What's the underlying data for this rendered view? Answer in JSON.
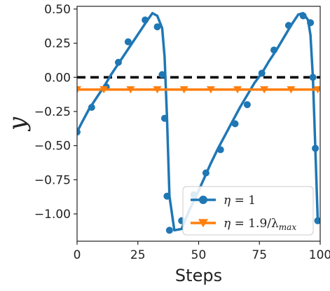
{
  "chart_data": {
    "type": "line",
    "xlabel": "Steps",
    "ylabel": "y",
    "xlim": [
      0,
      100
    ],
    "ylim": [
      -1.2,
      0.52
    ],
    "xticks": [
      0,
      25,
      50,
      75,
      100
    ],
    "xtick_labels": [
      "0",
      "25",
      "50",
      "75",
      "100"
    ],
    "yticks": [
      0.5,
      0.25,
      0.0,
      -0.25,
      -0.5,
      -0.75,
      -1.0
    ],
    "ytick_labels": [
      "0.50",
      "0.25",
      "0.00",
      "−0.25",
      "−0.50",
      "−0.75",
      "−1.00"
    ],
    "grid": false,
    "legend": "bottom-right",
    "reference_line": {
      "y": 0.0,
      "style": "dashed",
      "color": "#000000"
    },
    "series": [
      {
        "name": "η = 1",
        "color": "#1f77b4",
        "marker": "circle",
        "x": [
          0,
          2,
          5,
          8,
          11,
          14,
          17,
          20,
          23,
          26,
          29,
          31,
          33,
          35,
          36,
          37,
          38,
          40,
          43,
          46,
          49,
          52,
          55,
          58,
          61,
          64,
          67,
          70,
          73,
          76,
          79,
          82,
          85,
          88,
          91,
          93,
          95,
          96,
          97,
          98,
          99
        ],
        "y": [
          -0.4,
          -0.33,
          -0.23,
          -0.15,
          -0.07,
          0.02,
          0.1,
          0.18,
          0.26,
          0.34,
          0.42,
          0.47,
          0.45,
          0.36,
          0.15,
          -0.3,
          -0.87,
          -1.12,
          -1.11,
          -0.98,
          -0.87,
          -0.75,
          -0.63,
          -0.52,
          -0.42,
          -0.32,
          -0.22,
          -0.13,
          -0.04,
          0.03,
          0.12,
          0.2,
          0.29,
          0.38,
          0.46,
          0.47,
          0.42,
          0.31,
          0.0,
          -0.52,
          -1.05
        ],
        "marker_x": [
          0,
          6,
          12,
          17,
          21,
          28,
          33,
          35,
          36,
          37,
          38,
          43,
          48,
          53,
          59,
          65,
          70,
          76,
          81,
          87,
          93,
          96,
          97,
          98,
          99
        ],
        "marker_y": [
          -0.4,
          -0.22,
          -0.07,
          0.11,
          0.26,
          0.42,
          0.37,
          0.02,
          -0.3,
          -0.87,
          -1.12,
          -1.05,
          -0.86,
          -0.7,
          -0.53,
          -0.34,
          -0.2,
          0.03,
          0.2,
          0.38,
          0.45,
          0.4,
          0.0,
          -0.52,
          -1.05
        ]
      },
      {
        "name": "η = 1.9/λ_max",
        "color": "#ff7f0e",
        "marker": "triangle-down",
        "x": [
          0,
          100
        ],
        "y": [
          -0.09,
          -0.09
        ],
        "marker_x": [
          0,
          11,
          22,
          33,
          44,
          55,
          66,
          77,
          88,
          99
        ],
        "marker_y": [
          -0.09,
          -0.09,
          -0.09,
          -0.09,
          -0.09,
          -0.09,
          -0.09,
          -0.09,
          -0.09,
          -0.09
        ]
      }
    ],
    "legend_entries": [
      {
        "prefix": "η",
        "rest": " = 1",
        "sub": ""
      },
      {
        "prefix": "η",
        "rest": " = 1.9/λ",
        "sub": "max"
      }
    ]
  }
}
